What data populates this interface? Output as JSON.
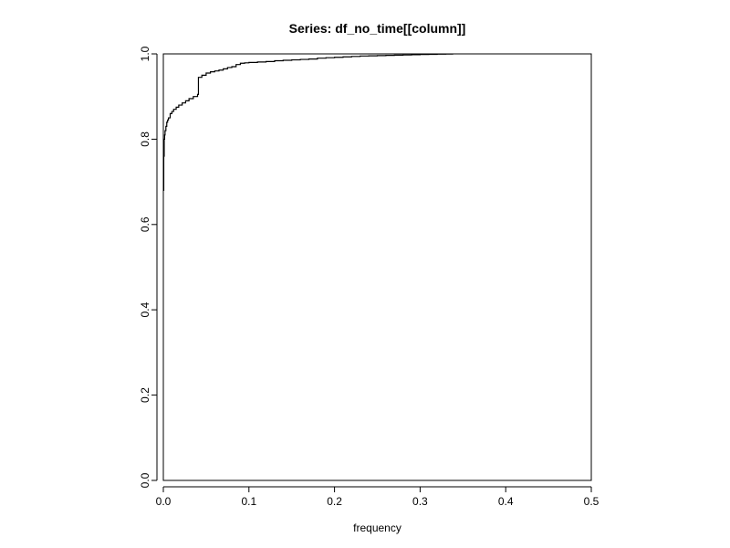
{
  "chart_data": {
    "type": "line",
    "title": "Series:  df_no_time[[column]]",
    "xlabel": "frequency",
    "ylabel": "",
    "xlim": [
      0,
      0.5
    ],
    "ylim": [
      0,
      1
    ],
    "x_ticks": [
      "0.0",
      "0.1",
      "0.2",
      "0.3",
      "0.4",
      "0.5"
    ],
    "y_ticks": [
      "0.0",
      "0.2",
      "0.4",
      "0.6",
      "0.8",
      "1.0"
    ],
    "grid": false,
    "legend": "none",
    "series": [
      {
        "style": "step",
        "color": "#000000",
        "x": [
          0.0,
          0.0005,
          0.001,
          0.0015,
          0.002,
          0.003,
          0.004,
          0.005,
          0.006,
          0.008,
          0.01,
          0.012,
          0.015,
          0.018,
          0.022,
          0.026,
          0.03,
          0.035,
          0.04,
          0.041,
          0.045,
          0.05,
          0.055,
          0.06,
          0.065,
          0.07,
          0.075,
          0.08,
          0.085,
          0.09,
          0.095,
          0.1,
          0.11,
          0.12,
          0.13,
          0.14,
          0.15,
          0.16,
          0.17,
          0.18,
          0.19,
          0.2,
          0.21,
          0.22,
          0.23,
          0.24,
          0.25,
          0.26,
          0.27,
          0.28,
          0.29,
          0.3,
          0.31,
          0.32,
          0.33,
          0.338
        ],
        "y": [
          0.68,
          0.76,
          0.8,
          0.81,
          0.82,
          0.83,
          0.84,
          0.845,
          0.85,
          0.86,
          0.865,
          0.87,
          0.875,
          0.88,
          0.885,
          0.89,
          0.895,
          0.9,
          0.905,
          0.945,
          0.95,
          0.955,
          0.958,
          0.96,
          0.962,
          0.965,
          0.968,
          0.97,
          0.975,
          0.978,
          0.979,
          0.98,
          0.981,
          0.982,
          0.984,
          0.985,
          0.986,
          0.987,
          0.988,
          0.99,
          0.991,
          0.992,
          0.993,
          0.994,
          0.995,
          0.9955,
          0.996,
          0.9965,
          0.997,
          0.9975,
          0.998,
          0.9985,
          0.999,
          0.9993,
          0.9996,
          1.0
        ]
      }
    ]
  }
}
